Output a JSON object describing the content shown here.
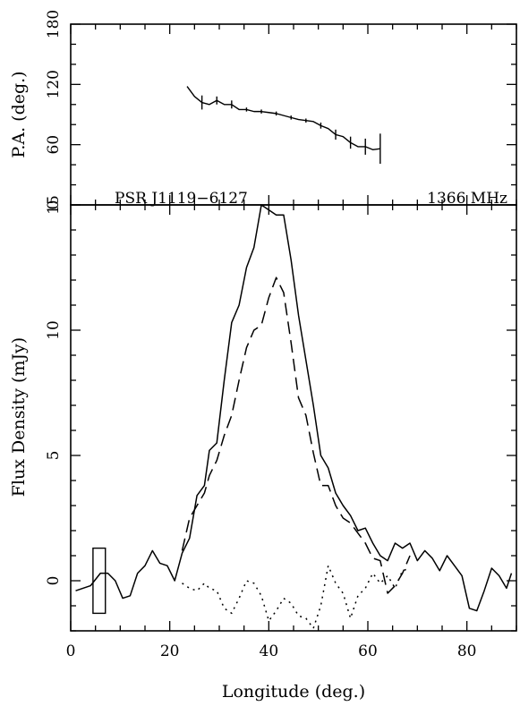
{
  "chart_data": [
    {
      "type": "line",
      "name": "position-angle-panel",
      "ylabel": "P.A. (deg.)",
      "xlim": [
        0,
        90
      ],
      "ylim": [
        0,
        180
      ],
      "yticks": [
        0,
        60,
        120,
        180
      ],
      "ytick_labels": [
        "0",
        "60",
        "120",
        "180"
      ],
      "grid": false,
      "series": [
        {
          "kind": "line",
          "x": [
            23.5,
            25,
            26.5,
            28,
            29.5,
            31,
            32.5,
            34,
            35.5,
            37,
            38.5,
            40,
            41.5,
            43,
            44.5,
            46,
            47.5,
            49,
            50.5,
            52,
            53.5,
            55,
            56.5,
            58,
            59.5,
            61,
            62.5
          ],
          "y": [
            118,
            108,
            102,
            100,
            104,
            100,
            100,
            95,
            95,
            93,
            93,
            92,
            91,
            89,
            87,
            85,
            84,
            83,
            79,
            76,
            70,
            68,
            62,
            58,
            58,
            55,
            56
          ]
        },
        {
          "kind": "errorbars",
          "x": [
            26.5,
            29.5,
            32.5,
            35.5,
            38.5,
            41.5,
            44.5,
            47.5,
            50.5,
            53.5,
            56.5,
            59.5,
            62.5
          ],
          "y": [
            102,
            104,
            100,
            95,
            93,
            91,
            87,
            84,
            79,
            70,
            62,
            58,
            56
          ],
          "err": [
            7,
            4,
            4,
            2,
            2,
            2,
            2,
            2,
            3,
            5,
            6,
            8,
            15
          ]
        }
      ]
    },
    {
      "type": "line",
      "name": "flux-panel",
      "title_left": "PSR J1119−6127",
      "title_right": "1366 MHz",
      "xlabel": "Longitude (deg.)",
      "ylabel": "Flux Density (mJy)",
      "xlim": [
        0,
        90
      ],
      "ylim": [
        -2,
        15
      ],
      "xticks": [
        0,
        20,
        40,
        60,
        80
      ],
      "xtick_labels": [
        "0",
        "20",
        "40",
        "60",
        "80"
      ],
      "yticks": [
        0,
        5,
        10,
        15
      ],
      "ytick_labels": [
        "0",
        "5",
        "10",
        "15"
      ],
      "grid": false,
      "series": [
        {
          "style": "solid",
          "x": [
            1,
            4,
            6,
            7.5,
            9,
            10.5,
            12,
            13.5,
            15,
            16.5,
            18,
            19.5,
            21,
            22.5,
            24,
            25.5,
            27,
            28,
            29.5,
            31,
            32.5,
            34,
            35.5,
            37,
            38.5,
            40,
            41.5,
            43,
            44.5,
            46,
            47.5,
            49,
            50.5,
            52,
            53.5,
            55,
            56.5,
            58,
            59.5,
            61,
            62.5,
            64,
            65.5,
            67,
            68.5,
            70,
            71.5,
            73,
            74.5,
            76,
            77.5,
            79,
            80.5,
            82,
            83.5,
            85,
            86.5,
            88,
            89
          ],
          "y": [
            -0.4,
            -0.2,
            0.3,
            0.3,
            0.0,
            -0.7,
            -0.6,
            0.3,
            0.6,
            1.2,
            0.7,
            0.6,
            0.0,
            1.1,
            1.7,
            3.4,
            3.8,
            5.2,
            5.5,
            8.0,
            10.3,
            11.0,
            12.5,
            13.3,
            15.0,
            14.8,
            14.6,
            14.6,
            12.8,
            10.6,
            8.8,
            7.0,
            5.0,
            4.5,
            3.5,
            3.0,
            2.6,
            2.0,
            2.1,
            1.5,
            1.0,
            0.8,
            1.5,
            1.3,
            1.5,
            0.8,
            1.2,
            0.9,
            0.4,
            1.0,
            0.6,
            0.2,
            -1.1,
            -1.2,
            -0.4,
            0.5,
            0.2,
            -0.3,
            0.3
          ]
        },
        {
          "style": "dashed",
          "x": [
            22.5,
            24,
            25.5,
            27,
            28,
            29.5,
            31,
            32.5,
            34,
            35.5,
            37,
            38.5,
            40,
            41.5,
            43,
            44.5,
            46,
            47.5,
            49,
            50.5,
            52,
            53.5,
            55,
            56.5,
            58,
            59.5,
            61,
            62.5,
            64,
            65.5,
            67,
            68.5
          ],
          "y": [
            1.2,
            2.5,
            3.0,
            3.5,
            4.2,
            4.8,
            5.8,
            6.6,
            8.0,
            9.3,
            10.0,
            10.2,
            11.3,
            12.1,
            11.5,
            9.5,
            7.3,
            6.6,
            5.1,
            3.8,
            3.8,
            3.0,
            2.5,
            2.3,
            1.9,
            1.5,
            0.9,
            0.8,
            -0.5,
            -0.2,
            0.3,
            1.0
          ]
        },
        {
          "style": "dotted",
          "x": [
            22.5,
            24,
            25.5,
            27,
            28,
            29.5,
            31,
            32.5,
            34,
            35.5,
            37,
            38.5,
            40,
            41.5,
            43,
            44.5,
            46,
            47.5,
            49,
            50.5,
            52,
            53.5,
            55,
            56.5,
            58,
            59.5,
            61,
            62.5,
            64,
            65.5,
            67,
            68.5
          ],
          "y": [
            -0.1,
            -0.3,
            -0.4,
            -0.1,
            -0.3,
            -0.4,
            -1.1,
            -1.3,
            -0.7,
            0.0,
            -0.1,
            -0.6,
            -1.6,
            -1.2,
            -0.7,
            -0.9,
            -1.4,
            -1.5,
            -1.9,
            -1.0,
            0.6,
            -0.1,
            -0.5,
            -1.5,
            -0.6,
            -0.3,
            0.3,
            -0.1,
            0.2,
            -0.3,
            0.4,
            0.5
          ]
        }
      ],
      "resolution_box": {
        "x": [
          4.5,
          7.0
        ],
        "y": [
          -1.3,
          1.3
        ]
      }
    }
  ]
}
